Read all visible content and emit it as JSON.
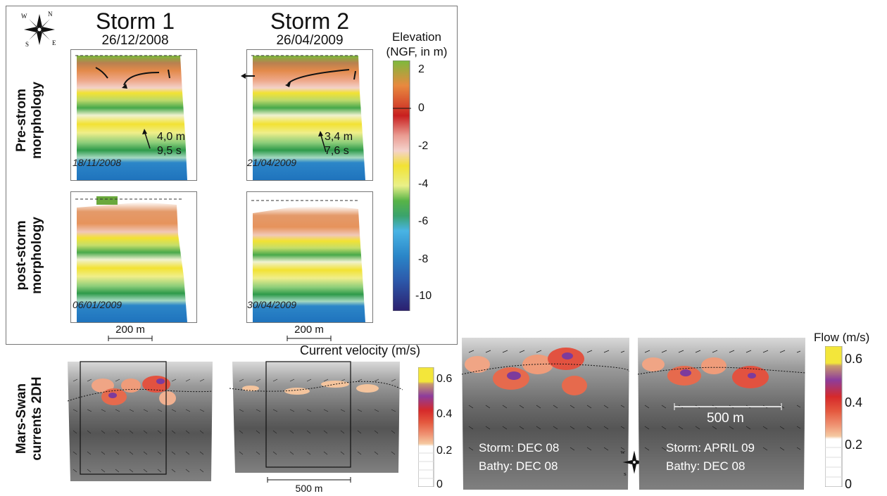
{
  "compass_labels": {
    "n": "N",
    "s": "S",
    "e": "E",
    "w": "W"
  },
  "top": {
    "storm1": {
      "title": "Storm 1",
      "date": "26/12/2008"
    },
    "storm2": {
      "title": "Storm 2",
      "date": "26/04/2009"
    },
    "row_labels": {
      "pre": [
        "Pre-strom",
        "morphology"
      ],
      "post": [
        "post-storm",
        "morphology"
      ]
    },
    "panels": {
      "pre1_date": "18/11/2008",
      "pre2_date": "21/04/2009",
      "post1_date": "06/01/2009",
      "post2_date": "30/04/2009"
    },
    "waves": {
      "storm1": {
        "height": "4,0 m",
        "period": "9,5 s"
      },
      "storm2": {
        "height": "3,4 m",
        "period": "7,6 s"
      }
    },
    "scale_label": "200 m",
    "elevation_colorbar": {
      "title_line1": "Elevation",
      "title_line2": "(NGF, in m)",
      "ticks": [
        "2",
        "0",
        "-2",
        "-4",
        "-6",
        "-8",
        "-10"
      ]
    }
  },
  "bottom": {
    "row_label": [
      "Mars-Swan",
      "currents 2DH"
    ],
    "current_title": "Current velocity (m/s)",
    "scale_500_left": "500 m",
    "scale_500_right": "500 m",
    "current_colorbar_ticks": [
      "0.6",
      "0.4",
      "0.2",
      "0"
    ],
    "flow_title": "Flow (m/s)",
    "flow_colorbar_ticks": [
      "0.6",
      "0.4",
      "0.2",
      "0"
    ],
    "zoom_left": {
      "line1": "Storm: DEC 08",
      "line2": "Bathy: DEC 08"
    },
    "zoom_right": {
      "line1": "Storm: APRIL 09",
      "line2": "Bathy: DEC 08"
    }
  },
  "colors": {
    "elevation_ramp": [
      "#7dba3c",
      "#e88a45",
      "#d5472c",
      "#c81f1f",
      "#e89a90",
      "#f0c8c0",
      "#f4e86a",
      "#f2e233",
      "#c3dc6a",
      "#4aa94a",
      "#2e9a5a",
      "#4bb3e3",
      "#1f7fc4",
      "#2454a8",
      "#2b2170"
    ],
    "flow_ramp": [
      "#f3e63a",
      "#c78fb5",
      "#8c3d9c",
      "#d62a2a",
      "#e2533c",
      "#ef8e6f",
      "#f4c49d",
      "#ffffff"
    ]
  }
}
